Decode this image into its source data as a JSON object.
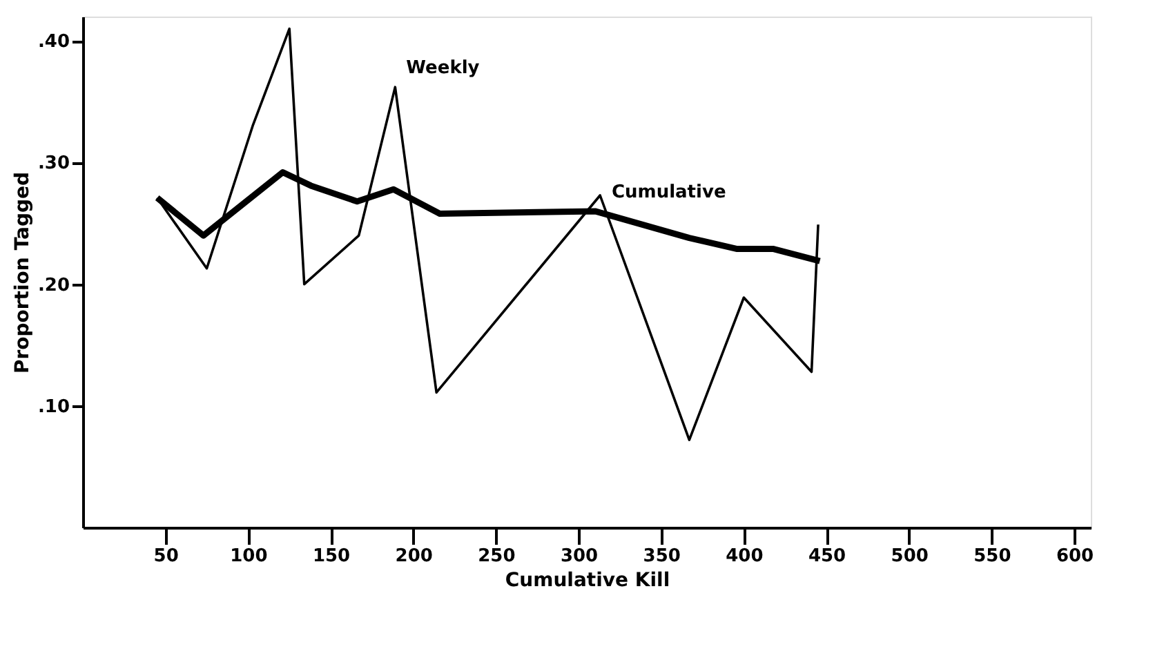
{
  "chart_data": {
    "type": "line",
    "xlabel": "Cumulative Kill",
    "ylabel": "Proportion Tagged",
    "xlim": [
      0,
      610
    ],
    "xticks": [
      50,
      100,
      150,
      200,
      250,
      300,
      350,
      400,
      450,
      500,
      550,
      600
    ],
    "ylim": [
      0,
      0.42
    ],
    "yticks": [
      {
        "value": 0.1,
        "label": ".10"
      },
      {
        "value": 0.2,
        "label": ".20"
      },
      {
        "value": 0.3,
        "label": ".30"
      },
      {
        "value": 0.4,
        "label": ".40"
      }
    ],
    "grid": false,
    "marker": "none",
    "line_style": "solid",
    "series": [
      {
        "name": "Weekly",
        "color": "#000000",
        "x": [
          45,
          75,
          103,
          125,
          134,
          167,
          189,
          214,
          313,
          367,
          400,
          441,
          445
        ],
        "values": [
          0.271,
          0.213,
          0.331,
          0.41,
          0.2,
          0.24,
          0.362,
          0.111,
          0.273,
          0.072,
          0.189,
          0.128,
          0.249
        ]
      },
      {
        "name": "Cumulative",
        "color": "#000000",
        "x": [
          45,
          73,
          121,
          138,
          166,
          188,
          216,
          310,
          367,
          396,
          418,
          446
        ],
        "values": [
          0.271,
          0.24,
          0.292,
          0.281,
          0.268,
          0.278,
          0.258,
          0.26,
          0.238,
          0.229,
          0.229,
          0.219
        ]
      }
    ]
  }
}
